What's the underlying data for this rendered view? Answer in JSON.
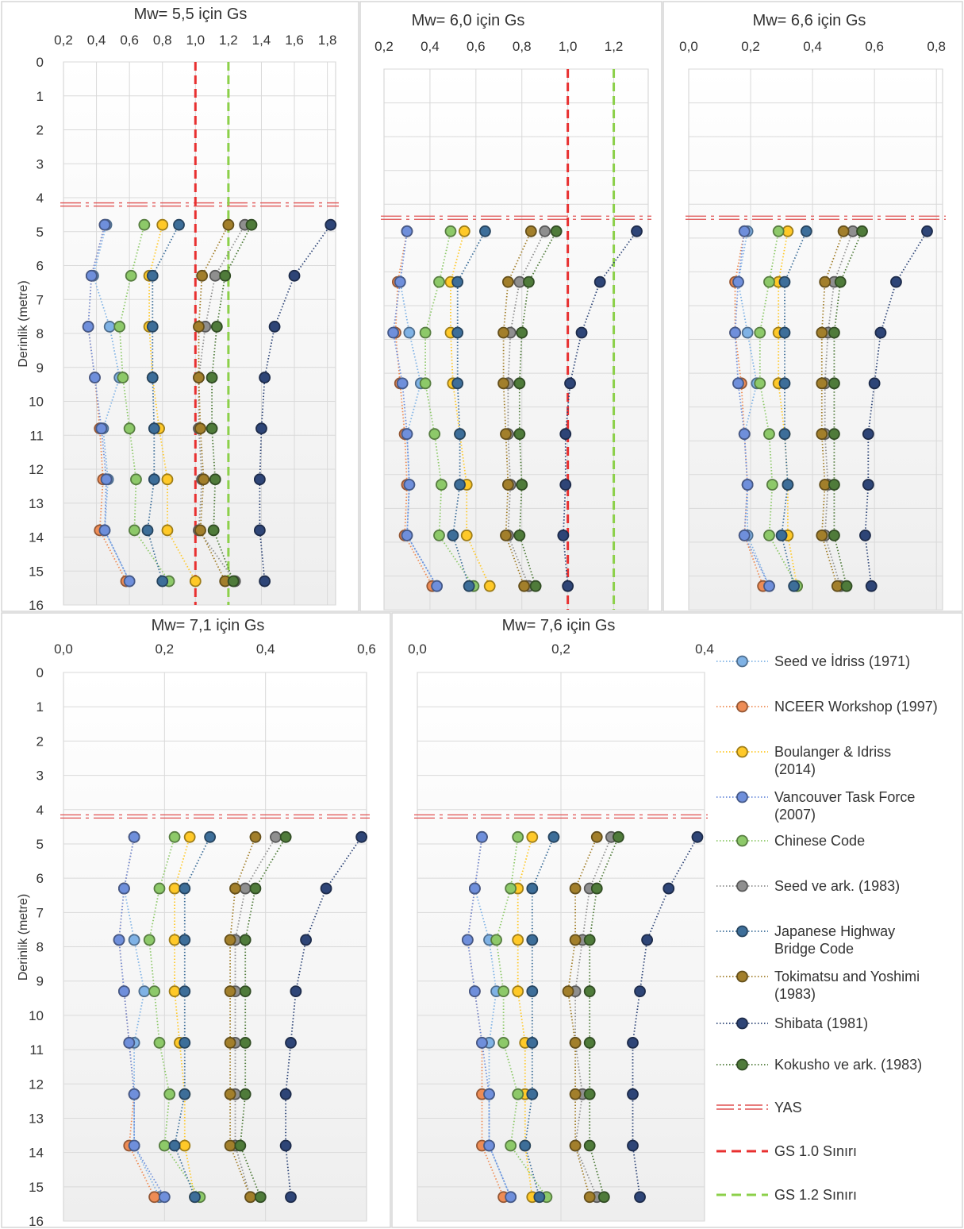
{
  "chart_data": {
    "type": "scatter",
    "y_label": "Derinlik (metre)",
    "depth_ticks": [
      "0",
      "1",
      "2",
      "3",
      "4",
      "5",
      "6",
      "7",
      "8",
      "9",
      "10",
      "11",
      "12",
      "13",
      "14",
      "15",
      "16"
    ],
    "ylim": [
      0,
      16
    ],
    "depths": [
      4.8,
      6.3,
      7.8,
      9.3,
      10.8,
      12.3,
      13.8,
      15.3
    ],
    "legend": {
      "placement": "right-bottom",
      "entries": [
        {
          "key": "seed_idriss",
          "label": "Seed ve İdriss (1971)"
        },
        {
          "key": "nceer",
          "label": "NCEER Workshop (1997)"
        },
        {
          "key": "boulanger",
          "label": "Boulanger & Idriss (2014)"
        },
        {
          "key": "vancouver",
          "label": "Vancouver Task Force (2007)"
        },
        {
          "key": "chinese",
          "label": "Chinese Code"
        },
        {
          "key": "seed_ark",
          "label": "Seed ve ark. (1983)"
        },
        {
          "key": "japanese",
          "label": "Japanese Highway Bridge Code"
        },
        {
          "key": "tokimatsu",
          "label": "Tokimatsu and Yoshimi (1983)"
        },
        {
          "key": "shibata",
          "label": "Shibata (1981)"
        },
        {
          "key": "kokusho",
          "label": "Kokusho ve ark. (1983)"
        },
        {
          "key": "yas",
          "label": "YAS"
        },
        {
          "key": "gs10",
          "label": "GS 1.0 Sınırı"
        },
        {
          "key": "gs12",
          "label": "GS 1.2 Sınırı"
        }
      ]
    },
    "colors": {
      "seed_idriss": "#7fb2e5",
      "nceer": "#ee8c55",
      "boulanger": "#ffc928",
      "vancouver": "#6f8fdb",
      "chinese": "#8dc969",
      "seed_ark": "#8f8f8f",
      "japanese": "#3d6e99",
      "tokimatsu": "#a27f2b",
      "shibata": "#2e4577",
      "kokusho": "#4f7b3a",
      "yas": "#e05050",
      "gs10": "#e83030",
      "gs12": "#8cd04a"
    },
    "charts": [
      {
        "title": "Mw= 5,5 için Gs",
        "x_ticks": [
          "0,2",
          "0,4",
          "0,6",
          "0,8",
          "1,0",
          "1,2",
          "1,4",
          "1,6",
          "1,8"
        ],
        "xlim": [
          0.2,
          1.85
        ],
        "yas_depth": 4.2,
        "gs_lines": {
          "gs10": 1.0,
          "gs12": 1.2
        },
        "series": {
          "seed_idriss": [
            0.46,
            0.38,
            0.48,
            0.54,
            0.44,
            0.47,
            0.45,
            0.6
          ],
          "nceer": [
            0.45,
            0.37,
            0.35,
            0.39,
            0.42,
            0.44,
            0.42,
            0.58
          ],
          "boulanger": [
            0.8,
            0.72,
            0.72,
            0.74,
            0.78,
            0.83,
            0.83,
            1.0
          ],
          "vancouver": [
            0.45,
            0.37,
            0.35,
            0.39,
            0.43,
            0.46,
            0.45,
            0.6
          ],
          "chinese": [
            0.69,
            0.61,
            0.54,
            0.56,
            0.6,
            0.64,
            0.63,
            0.84
          ],
          "seed_ark": [
            1.3,
            1.12,
            1.06,
            1.02,
            1.02,
            1.04,
            1.02,
            1.24
          ],
          "japanese": [
            0.9,
            0.74,
            0.74,
            0.74,
            0.75,
            0.75,
            0.71,
            0.8
          ],
          "tokimatsu": [
            1.2,
            1.04,
            1.02,
            1.02,
            1.03,
            1.05,
            1.03,
            1.18
          ],
          "shibata": [
            1.82,
            1.6,
            1.48,
            1.42,
            1.4,
            1.39,
            1.39,
            1.42
          ],
          "kokusho": [
            1.34,
            1.18,
            1.13,
            1.1,
            1.1,
            1.12,
            1.11,
            1.23
          ]
        }
      },
      {
        "title": "Mw= 6,0 için Gs",
        "x_ticks": [
          "0,2",
          "0,4",
          "0,6",
          "0,8",
          "1,0",
          "1,2"
        ],
        "xlim": [
          0.2,
          1.35
        ],
        "yas_depth": 4.4,
        "gs_lines": {
          "gs10": 1.0,
          "gs12": 1.2
        },
        "series": {
          "seed_idriss": [
            0.3,
            0.27,
            0.31,
            0.36,
            0.3,
            0.31,
            0.3,
            0.43
          ],
          "nceer": [
            0.3,
            0.26,
            0.25,
            0.27,
            0.29,
            0.3,
            0.29,
            0.41
          ],
          "boulanger": [
            0.55,
            0.49,
            0.49,
            0.5,
            0.53,
            0.56,
            0.56,
            0.66
          ],
          "vancouver": [
            0.3,
            0.27,
            0.24,
            0.28,
            0.3,
            0.31,
            0.3,
            0.43
          ],
          "chinese": [
            0.49,
            0.44,
            0.38,
            0.38,
            0.42,
            0.45,
            0.44,
            0.59
          ],
          "seed_ark": [
            0.9,
            0.79,
            0.75,
            0.74,
            0.74,
            0.75,
            0.74,
            0.83
          ],
          "japanese": [
            0.64,
            0.52,
            0.52,
            0.52,
            0.53,
            0.53,
            0.5,
            0.57
          ],
          "tokimatsu": [
            0.84,
            0.74,
            0.72,
            0.72,
            0.73,
            0.74,
            0.73,
            0.81
          ],
          "shibata": [
            1.3,
            1.14,
            1.06,
            1.01,
            0.99,
            0.99,
            0.98,
            1.0
          ],
          "kokusho": [
            0.95,
            0.83,
            0.8,
            0.79,
            0.79,
            0.8,
            0.79,
            0.86
          ]
        }
      },
      {
        "title": "Mw= 6,6 için Gs",
        "x_ticks": [
          "0,0",
          "0,2",
          "0,4",
          "0,6",
          "0,8"
        ],
        "xlim": [
          0.0,
          0.82
        ],
        "yas_depth": 4.4,
        "series": {
          "seed_idriss": [
            0.19,
            0.16,
            0.19,
            0.22,
            0.18,
            0.19,
            0.19,
            0.26
          ],
          "nceer": [
            0.18,
            0.15,
            0.15,
            0.17,
            0.18,
            0.19,
            0.18,
            0.24
          ],
          "boulanger": [
            0.32,
            0.29,
            0.29,
            0.29,
            0.31,
            0.32,
            0.32,
            0.35
          ],
          "vancouver": [
            0.18,
            0.16,
            0.15,
            0.16,
            0.18,
            0.19,
            0.18,
            0.26
          ],
          "chinese": [
            0.29,
            0.26,
            0.23,
            0.23,
            0.26,
            0.27,
            0.26,
            0.35
          ],
          "seed_ark": [
            0.53,
            0.47,
            0.45,
            0.44,
            0.44,
            0.45,
            0.44,
            0.49
          ],
          "japanese": [
            0.38,
            0.31,
            0.31,
            0.31,
            0.31,
            0.32,
            0.3,
            0.34
          ],
          "tokimatsu": [
            0.5,
            0.44,
            0.43,
            0.43,
            0.43,
            0.44,
            0.43,
            0.48
          ],
          "shibata": [
            0.77,
            0.67,
            0.62,
            0.6,
            0.58,
            0.58,
            0.57,
            0.59
          ],
          "kokusho": [
            0.56,
            0.49,
            0.47,
            0.47,
            0.47,
            0.47,
            0.47,
            0.51
          ]
        }
      },
      {
        "title": "Mw= 7,1 için Gs",
        "x_ticks": [
          "0,0",
          "0,2",
          "0,4",
          "0,6"
        ],
        "xlim": [
          0.0,
          0.6
        ],
        "yas_depth": 4.2,
        "series": {
          "seed_idriss": [
            0.14,
            0.12,
            0.14,
            0.16,
            0.14,
            0.14,
            0.14,
            0.19
          ],
          "nceer": [
            0.14,
            0.12,
            0.11,
            0.12,
            0.13,
            0.14,
            0.13,
            0.18
          ],
          "boulanger": [
            0.25,
            0.22,
            0.22,
            0.22,
            0.23,
            0.24,
            0.24,
            0.26
          ],
          "vancouver": [
            0.14,
            0.12,
            0.11,
            0.12,
            0.13,
            0.14,
            0.14,
            0.2
          ],
          "chinese": [
            0.22,
            0.19,
            0.17,
            0.18,
            0.19,
            0.21,
            0.2,
            0.27
          ],
          "seed_ark": [
            0.42,
            0.36,
            0.34,
            0.34,
            0.34,
            0.34,
            0.34,
            0.37
          ],
          "japanese": [
            0.29,
            0.24,
            0.24,
            0.24,
            0.24,
            0.24,
            0.22,
            0.26
          ],
          "tokimatsu": [
            0.38,
            0.34,
            0.33,
            0.33,
            0.33,
            0.33,
            0.33,
            0.37
          ],
          "shibata": [
            0.59,
            0.52,
            0.48,
            0.46,
            0.45,
            0.44,
            0.44,
            0.45
          ],
          "kokusho": [
            0.44,
            0.38,
            0.36,
            0.36,
            0.36,
            0.36,
            0.35,
            0.39
          ]
        }
      },
      {
        "title": "Mw= 7,6 için Gs",
        "x_ticks": [
          "0,0",
          "0,2",
          "0,4"
        ],
        "xlim": [
          0.0,
          0.4
        ],
        "yas_depth": 4.2,
        "series": {
          "seed_idriss": [
            0.09,
            0.08,
            0.1,
            0.11,
            0.1,
            0.1,
            0.1,
            0.13
          ],
          "nceer": [
            0.09,
            0.08,
            0.07,
            0.08,
            0.09,
            0.09,
            0.09,
            0.12
          ],
          "boulanger": [
            0.16,
            0.14,
            0.14,
            0.14,
            0.15,
            0.15,
            0.15,
            0.16
          ],
          "vancouver": [
            0.09,
            0.08,
            0.07,
            0.08,
            0.09,
            0.1,
            0.1,
            0.13
          ],
          "chinese": [
            0.14,
            0.13,
            0.11,
            0.12,
            0.12,
            0.14,
            0.13,
            0.18
          ],
          "seed_ark": [
            0.27,
            0.24,
            0.23,
            0.22,
            0.22,
            0.23,
            0.22,
            0.25
          ],
          "japanese": [
            0.19,
            0.16,
            0.16,
            0.16,
            0.16,
            0.16,
            0.15,
            0.17
          ],
          "tokimatsu": [
            0.25,
            0.22,
            0.22,
            0.21,
            0.22,
            0.22,
            0.22,
            0.24
          ],
          "shibata": [
            0.39,
            0.35,
            0.32,
            0.31,
            0.3,
            0.3,
            0.3,
            0.31
          ],
          "kokusho": [
            0.28,
            0.25,
            0.24,
            0.24,
            0.24,
            0.24,
            0.24,
            0.26
          ]
        }
      }
    ]
  }
}
